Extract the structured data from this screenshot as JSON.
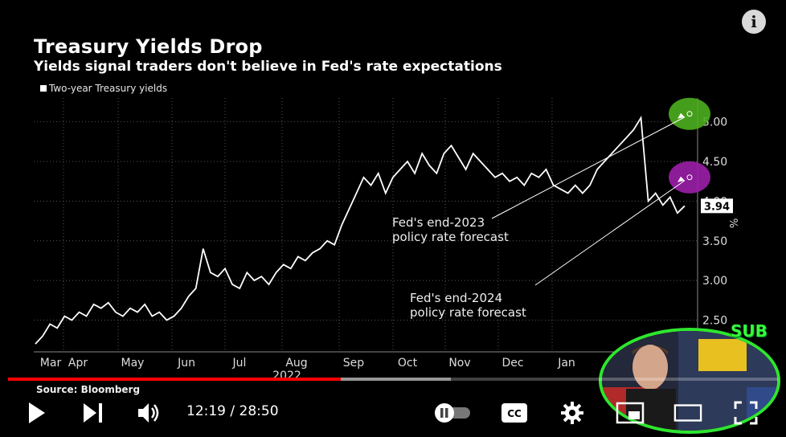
{
  "video": {
    "chart_title": "Treasury Yields Drop",
    "chart_subtitle": "Yields signal traders don't believe in Fed's rate expectations",
    "legend_label": "Two-year Treasury yields",
    "source": "Source: Bloomberg",
    "badge": "SUB",
    "colors": {
      "background": "#000000",
      "line": "#ffffff",
      "fed2023": "#4caf1e",
      "fed2024": "#9b1fa8",
      "progress": "#ff0000"
    }
  },
  "chart_data": {
    "type": "line",
    "xlabel": "2022",
    "x_ticks": [
      "Mar",
      "Apr",
      "May",
      "Jun",
      "Jul",
      "Aug",
      "Sep",
      "Oct",
      "Nov",
      "Dec",
      "Jan"
    ],
    "y_ticks": [
      "2.50",
      "3.00",
      "3.50",
      "4.00",
      "4.50",
      "5.00"
    ],
    "ylim": [
      2.1,
      5.3
    ],
    "unit": "%",
    "last_value_label": "3.94",
    "annotations": [
      {
        "text_line1": "Fed's end-2023",
        "text_line2": "policy rate forecast",
        "value": 5.1
      },
      {
        "text_line1": "Fed's end-2024",
        "text_line2": "policy rate forecast",
        "value": 4.3
      }
    ],
    "series": [
      {
        "values": [
          2.2,
          2.3,
          2.45,
          2.4,
          2.55,
          2.5,
          2.6,
          2.55,
          2.7,
          2.65,
          2.72,
          2.6,
          2.55,
          2.65,
          2.6,
          2.7,
          2.55,
          2.6,
          2.5,
          2.55,
          2.65,
          2.8,
          2.9,
          3.4,
          3.1,
          3.05,
          3.15,
          2.95,
          2.9,
          3.1,
          3.0,
          3.05,
          2.95,
          3.1,
          3.2,
          3.15,
          3.3,
          3.25,
          3.35,
          3.4,
          3.5,
          3.45,
          3.7,
          3.9,
          4.1,
          4.3,
          4.2,
          4.35,
          4.1,
          4.3,
          4.4,
          4.5,
          4.35,
          4.6,
          4.45,
          4.35,
          4.6,
          4.7,
          4.55,
          4.4,
          4.6,
          4.5,
          4.4,
          4.3,
          4.35,
          4.25,
          4.3,
          4.2,
          4.35,
          4.3,
          4.4,
          4.2,
          4.15,
          4.1,
          4.2,
          4.1,
          4.2,
          4.4,
          4.5,
          4.6,
          4.7,
          4.8,
          4.9,
          5.05,
          4.0,
          4.1,
          3.95,
          4.05,
          3.85,
          3.94
        ]
      }
    ]
  },
  "player": {
    "current_time": "12:19",
    "duration": "28:50",
    "time_separator": " / ",
    "progress_fraction": 0.432,
    "buffer_fraction": 0.575
  }
}
